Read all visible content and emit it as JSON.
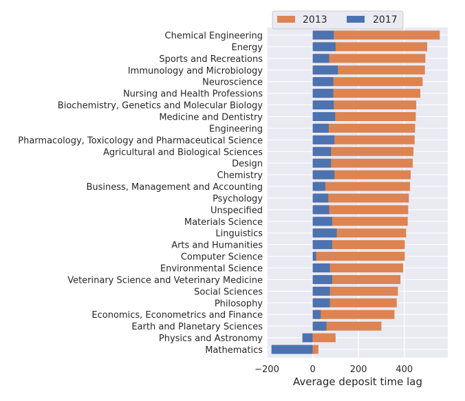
{
  "chart_data": {
    "type": "bar",
    "orientation": "horizontal",
    "xlabel": "Average deposit time lag",
    "xlim": [
      -200,
      590
    ],
    "xticks": [
      -200,
      0,
      200,
      400
    ],
    "xtick_labels": [
      "−200",
      "0",
      "200",
      "400"
    ],
    "grid": true,
    "legend_position": "top-center",
    "categories": [
      "Chemical Engineering",
      "Energy",
      "Sports and Recreations",
      "Immunology and Microbiology",
      "Neuroscience",
      "Nursing and Health Professions",
      "Biochemistry, Genetics and Molecular Biology",
      "Medicine and Dentistry",
      "Engineering",
      "Pharmacology, Toxicology and Pharmaceutical Science",
      "Agricultural and Biological Sciences",
      "Design",
      "Chemistry",
      "Business, Management and Accounting",
      "Psychology",
      "Unspecified",
      "Materials Science",
      "Linguistics",
      "Arts and Humanities",
      "Computer Science",
      "Environmental Science",
      "Veterinary Science and Veterinary Medicine",
      "Social Sciences",
      "Philosophy",
      "Economics, Econometrics and Finance",
      "Earth and Planetary Sciences",
      "Physics and Astronomy",
      "Mathematics"
    ],
    "series": [
      {
        "name": "2013",
        "color": "#DD8452",
        "values": [
          555,
          500,
          492,
          490,
          480,
          470,
          452,
          450,
          447,
          445,
          440,
          437,
          428,
          425,
          420,
          417,
          415,
          408,
          402,
          402,
          395,
          383,
          372,
          367,
          357,
          300,
          100,
          25
        ]
      },
      {
        "name": "2017",
        "color": "#4C72B0",
        "values": [
          92,
          100,
          72,
          110,
          90,
          90,
          92,
          98,
          70,
          95,
          80,
          80,
          95,
          55,
          68,
          72,
          85,
          105,
          85,
          15,
          75,
          85,
          75,
          75,
          35,
          60,
          -45,
          -180
        ]
      }
    ]
  }
}
